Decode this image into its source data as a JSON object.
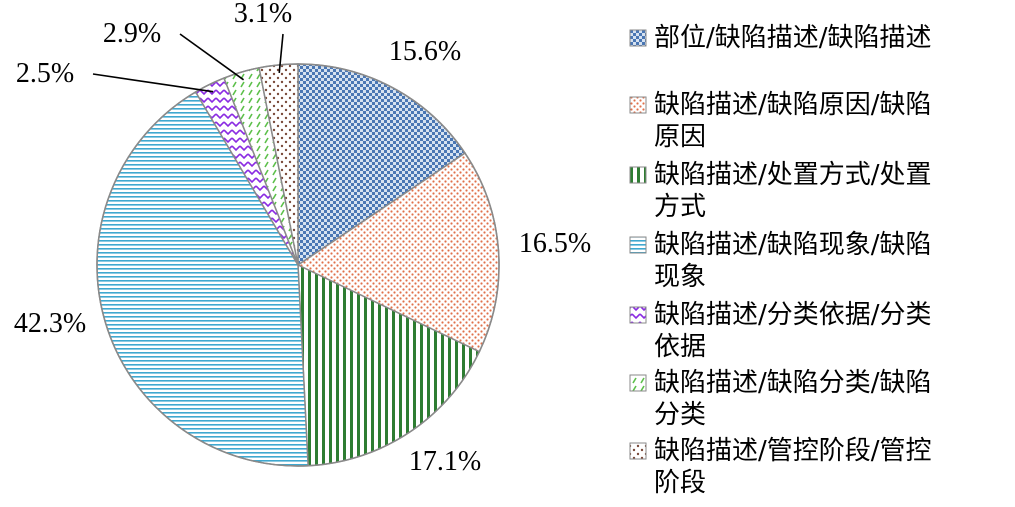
{
  "chart_data": {
    "type": "pie",
    "title": "",
    "start_angle_deg": 0,
    "direction": "clockwise",
    "slices": [
      {
        "label": "部位/缺陷描述/缺陷描述",
        "legend_lines": [
          "部位/缺陷描述/缺陷描述"
        ],
        "value": 15.6,
        "value_label": "15.6%",
        "color": "#4a77b4",
        "pattern": "dots-dense"
      },
      {
        "label": "缺陷描述/缺陷原因/缺陷原因",
        "legend_lines": [
          "缺陷描述/缺陷原因/缺陷",
          "原因"
        ],
        "value": 16.5,
        "value_label": "16.5%",
        "color": "#e0704a",
        "pattern": "dots-light"
      },
      {
        "label": "缺陷描述/处置方式/处置方式",
        "legend_lines": [
          "缺陷描述/处置方式/处置",
          "方式"
        ],
        "value": 17.1,
        "value_label": "17.1%",
        "color": "#2e7d32",
        "pattern": "vertical"
      },
      {
        "label": "缺陷描述/缺陷现象/缺陷现象",
        "legend_lines": [
          "缺陷描述/缺陷现象/缺陷",
          "现象"
        ],
        "value": 42.3,
        "value_label": "42.3%",
        "color": "#3fa8d0",
        "pattern": "horizontal"
      },
      {
        "label": "缺陷描述/分类依据/分类依据",
        "legend_lines": [
          "缺陷描述/分类依据/分类",
          "依据"
        ],
        "value": 2.5,
        "value_label": "2.5%",
        "color": "#8a2be2",
        "pattern": "zigzag"
      },
      {
        "label": "缺陷描述/缺陷分类/缺陷分类",
        "legend_lines": [
          "缺陷描述/缺陷分类/缺陷",
          "分类"
        ],
        "value": 2.9,
        "value_label": "2.9%",
        "color": "#5cc04a",
        "pattern": "dashes"
      },
      {
        "label": "缺陷描述/管控阶段/管控阶段",
        "legend_lines": [
          "缺陷描述/管控阶段/管控",
          "阶段"
        ],
        "value": 3.1,
        "value_label": "3.1%",
        "color": "#7a4a3a",
        "pattern": "dots-sparse"
      }
    ],
    "legend_position": "right"
  }
}
